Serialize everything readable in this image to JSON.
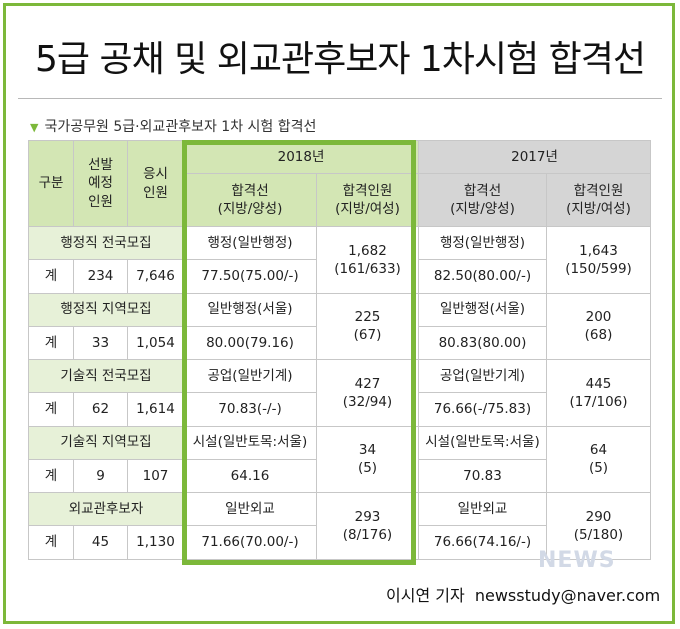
{
  "title": "5급 공채 및 외교관후보자 1차시험 합격선",
  "subtitle": "국가공무원 5급·외교관후보자 1차 시험 합격선",
  "header": {
    "category": "구분",
    "planned": "선발\n예정\n인원",
    "applicants": "응시\n인원",
    "year_2018": "2018년",
    "year_2017": "2017년",
    "cutoff": "합격선\n(지방/양성)",
    "passers": "합격인원\n(지방/여성)"
  },
  "rows": [
    {
      "name": "행정직 전국모집",
      "total_label": "계",
      "planned": "234",
      "applicants": "7,646",
      "y2018": {
        "field": "행정(일반행정)",
        "cutoff": "77.50(75.00/-)",
        "passers": "1,682",
        "passers_detail": "(161/633)"
      },
      "y2017": {
        "field": "행정(일반행정)",
        "cutoff": "82.50(80.00/-)",
        "passers": "1,643",
        "passers_detail": "(150/599)"
      }
    },
    {
      "name": "행정직 지역모집",
      "total_label": "계",
      "planned": "33",
      "applicants": "1,054",
      "y2018": {
        "field": "일반행정(서울)",
        "cutoff": "80.00(79.16)",
        "passers": "225",
        "passers_detail": "(67)"
      },
      "y2017": {
        "field": "일반행정(서울)",
        "cutoff": "80.83(80.00)",
        "passers": "200",
        "passers_detail": "(68)"
      }
    },
    {
      "name": "기술직 전국모집",
      "total_label": "계",
      "planned": "62",
      "applicants": "1,614",
      "y2018": {
        "field": "공업(일반기계)",
        "cutoff": "70.83(-/-)",
        "passers": "427",
        "passers_detail": "(32/94)"
      },
      "y2017": {
        "field": "공업(일반기계)",
        "cutoff": "76.66(-/75.83)",
        "passers": "445",
        "passers_detail": "(17/106)"
      }
    },
    {
      "name": "기술직 지역모집",
      "total_label": "계",
      "planned": "9",
      "applicants": "107",
      "y2018": {
        "field": "시설(일반토목:서울)",
        "cutoff": "64.16",
        "passers": "34",
        "passers_detail": "(5)"
      },
      "y2017": {
        "field": "시설(일반토목:서울)",
        "cutoff": "70.83",
        "passers": "64",
        "passers_detail": "(5)"
      }
    },
    {
      "name": "외교관후보자",
      "total_label": "계",
      "planned": "45",
      "applicants": "1,130",
      "y2018": {
        "field": "일반외교",
        "cutoff": "71.66(70.00/-)",
        "passers": "293",
        "passers_detail": "(8/176)"
      },
      "y2017": {
        "field": "일반외교",
        "cutoff": "76.66(74.16/-)",
        "passers": "290",
        "passers_detail": "(5/180)"
      }
    }
  ],
  "footer": {
    "reporter": "이시연 기자",
    "email": "newsstudy@naver.com"
  },
  "watermark": "NEWS",
  "colors": {
    "accent_green": "#7cb83a",
    "header_green": "#d3e6b4",
    "header_gray": "#d5d5d5",
    "section_green": "#e7f1d8"
  }
}
